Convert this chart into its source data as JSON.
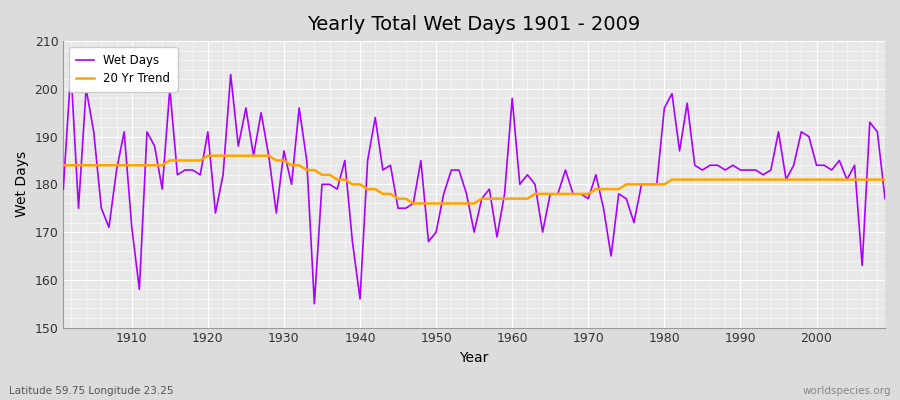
{
  "title": "Yearly Total Wet Days 1901 - 2009",
  "xlabel": "Year",
  "ylabel": "Wet Days",
  "subtitle": "Latitude 59.75 Longitude 23.25",
  "watermark": "worldspecies.org",
  "line_color": "#AA00FF",
  "trend_color": "#FFA500",
  "bg_color": "#DCDCDC",
  "plot_bg": "#E8E8E8",
  "ylim": [
    150,
    210
  ],
  "xlim": [
    1901,
    2009
  ],
  "yticks": [
    150,
    160,
    170,
    180,
    190,
    200,
    210
  ],
  "xticks": [
    1910,
    1920,
    1930,
    1940,
    1950,
    1960,
    1970,
    1980,
    1990,
    2000
  ],
  "years": [
    1901,
    1902,
    1903,
    1904,
    1905,
    1906,
    1907,
    1908,
    1909,
    1910,
    1911,
    1912,
    1913,
    1914,
    1915,
    1916,
    1917,
    1918,
    1919,
    1920,
    1921,
    1922,
    1923,
    1924,
    1925,
    1926,
    1927,
    1928,
    1929,
    1930,
    1931,
    1932,
    1933,
    1934,
    1935,
    1936,
    1937,
    1938,
    1939,
    1940,
    1941,
    1942,
    1943,
    1944,
    1945,
    1946,
    1947,
    1948,
    1949,
    1950,
    1951,
    1952,
    1953,
    1954,
    1955,
    1956,
    1957,
    1958,
    1959,
    1960,
    1961,
    1962,
    1963,
    1964,
    1965,
    1966,
    1967,
    1968,
    1969,
    1970,
    1971,
    1972,
    1973,
    1974,
    1975,
    1976,
    1977,
    1978,
    1979,
    1980,
    1981,
    1982,
    1983,
    1984,
    1985,
    1986,
    1987,
    1988,
    1989,
    1990,
    1991,
    1992,
    1993,
    1994,
    1995,
    1996,
    1997,
    1998,
    1999,
    2000,
    2001,
    2002,
    2003,
    2004,
    2005,
    2006,
    2007,
    2008,
    2009
  ],
  "wet_days": [
    179,
    204,
    175,
    200,
    191,
    175,
    171,
    183,
    191,
    171,
    158,
    191,
    188,
    179,
    200,
    182,
    183,
    183,
    182,
    191,
    174,
    182,
    203,
    188,
    196,
    186,
    195,
    186,
    174,
    187,
    180,
    196,
    185,
    155,
    180,
    180,
    179,
    185,
    168,
    156,
    185,
    194,
    183,
    184,
    175,
    175,
    176,
    185,
    168,
    170,
    178,
    183,
    183,
    178,
    170,
    177,
    179,
    169,
    178,
    198,
    180,
    182,
    180,
    170,
    178,
    178,
    183,
    178,
    178,
    177,
    182,
    175,
    165,
    178,
    177,
    172,
    180,
    180,
    180,
    196,
    199,
    187,
    197,
    184,
    183,
    184,
    184,
    183,
    184,
    183,
    183,
    183,
    182,
    183,
    191,
    181,
    184,
    191,
    190,
    184,
    184,
    183,
    185,
    181,
    184,
    163,
    193,
    191,
    177
  ],
  "trend": [
    184,
    184,
    184,
    184,
    184,
    184,
    184,
    184,
    184,
    184,
    184,
    184,
    184,
    184,
    185,
    185,
    185,
    185,
    185,
    186,
    186,
    186,
    186,
    186,
    186,
    186,
    186,
    186,
    185,
    185,
    184,
    184,
    183,
    183,
    182,
    182,
    181,
    181,
    180,
    180,
    179,
    179,
    178,
    178,
    177,
    177,
    176,
    176,
    176,
    176,
    176,
    176,
    176,
    176,
    176,
    177,
    177,
    177,
    177,
    177,
    177,
    177,
    178,
    178,
    178,
    178,
    178,
    178,
    178,
    178,
    179,
    179,
    179,
    179,
    180,
    180,
    180,
    180,
    180,
    180,
    181,
    181,
    181,
    181,
    181,
    181,
    181,
    181,
    181,
    181,
    181,
    181,
    181,
    181,
    181,
    181,
    181,
    181,
    181,
    181,
    181,
    181,
    181,
    181,
    181,
    181,
    181,
    181,
    181
  ]
}
